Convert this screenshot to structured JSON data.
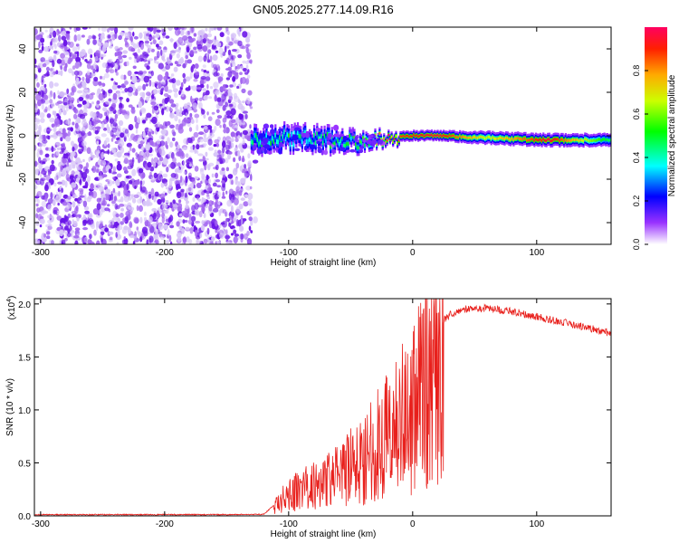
{
  "title": "GN05.2025.277.14.09.R16",
  "colors": {
    "scatter_dark": "#6a14e8",
    "scatter_mid": "#a264f0",
    "scatter_light": "#d8c6f8",
    "snr_line": "#e8201c",
    "axis": "#000000"
  },
  "chart_data": [
    {
      "type": "heatmap",
      "name": "spectrogram",
      "xlabel": "Height of straight line (km)",
      "ylabel": "Frequency (Hz)",
      "xlim": [
        -305,
        160
      ],
      "ylim": [
        -50,
        50
      ],
      "xticks": [
        -300,
        -200,
        -100,
        0,
        100
      ],
      "yticks": [
        -40,
        -20,
        0,
        20,
        40
      ],
      "colorbar": {
        "label": "Normalized spectral amplitude",
        "range": [
          0,
          1
        ],
        "ticks": [
          0.0,
          0.2,
          0.4,
          0.6,
          0.8
        ],
        "tick_labels": [
          "0.0",
          "0.2",
          "0.4",
          "0.6",
          "0.8"
        ]
      },
      "noise_region": {
        "x": [
          -305,
          -130
        ],
        "y": [
          -50,
          50
        ]
      },
      "signal_band": [
        {
          "x": -130,
          "freq": -2,
          "width_hz": 9,
          "amplitude": 0.45
        },
        {
          "x": -100,
          "freq": -1,
          "width_hz": 8,
          "amplitude": 0.45
        },
        {
          "x": -70,
          "freq": -2,
          "width_hz": 8,
          "amplitude": 0.45
        },
        {
          "x": -40,
          "freq": -3,
          "width_hz": 6,
          "amplitude": 0.5
        },
        {
          "x": -20,
          "freq": -1,
          "width_hz": 4,
          "amplitude": 0.85
        },
        {
          "x": 0,
          "freq": 0,
          "width_hz": 4,
          "amplitude": 0.9
        },
        {
          "x": 20,
          "freq": 0,
          "width_hz": 4,
          "amplitude": 0.95
        },
        {
          "x": 60,
          "freq": -1,
          "width_hz": 5,
          "amplitude": 0.65
        },
        {
          "x": 110,
          "freq": -2,
          "width_hz": 5,
          "amplitude": 0.95
        },
        {
          "x": 160,
          "freq": -2,
          "width_hz": 5,
          "amplitude": 0.45
        }
      ]
    },
    {
      "type": "line",
      "name": "snr",
      "xlabel": "Height of straight line (km)",
      "ylabel": "SNR (10 * v/v)",
      "y_multiplier": "(x10",
      "y_multiplier_exp": "4",
      "y_multiplier_close": ")",
      "xlim": [
        -305,
        160
      ],
      "ylim": [
        0,
        20500
      ],
      "xticks": [
        -300,
        -200,
        -100,
        0,
        100
      ],
      "yticks": [
        0,
        5000,
        10000,
        15000,
        20000
      ],
      "ytick_labels": [
        "0.0",
        "0.5",
        "1.0",
        "1.5",
        "2.0"
      ],
      "series": [
        {
          "name": "SNR",
          "x": [
            -305,
            -250,
            -200,
            -150,
            -120,
            -110,
            -100,
            -80,
            -60,
            -40,
            -30,
            -20,
            -10,
            0,
            10,
            20,
            30,
            40,
            60,
            80,
            100,
            120,
            140,
            160
          ],
          "envelope": [
            120,
            120,
            120,
            120,
            150,
            1200,
            2500,
            3500,
            4500,
            6500,
            8000,
            9500,
            11000,
            12500,
            15500,
            18000,
            19000,
            19500,
            19600,
            19300,
            18800,
            18300,
            17800,
            17200
          ]
        }
      ]
    }
  ]
}
